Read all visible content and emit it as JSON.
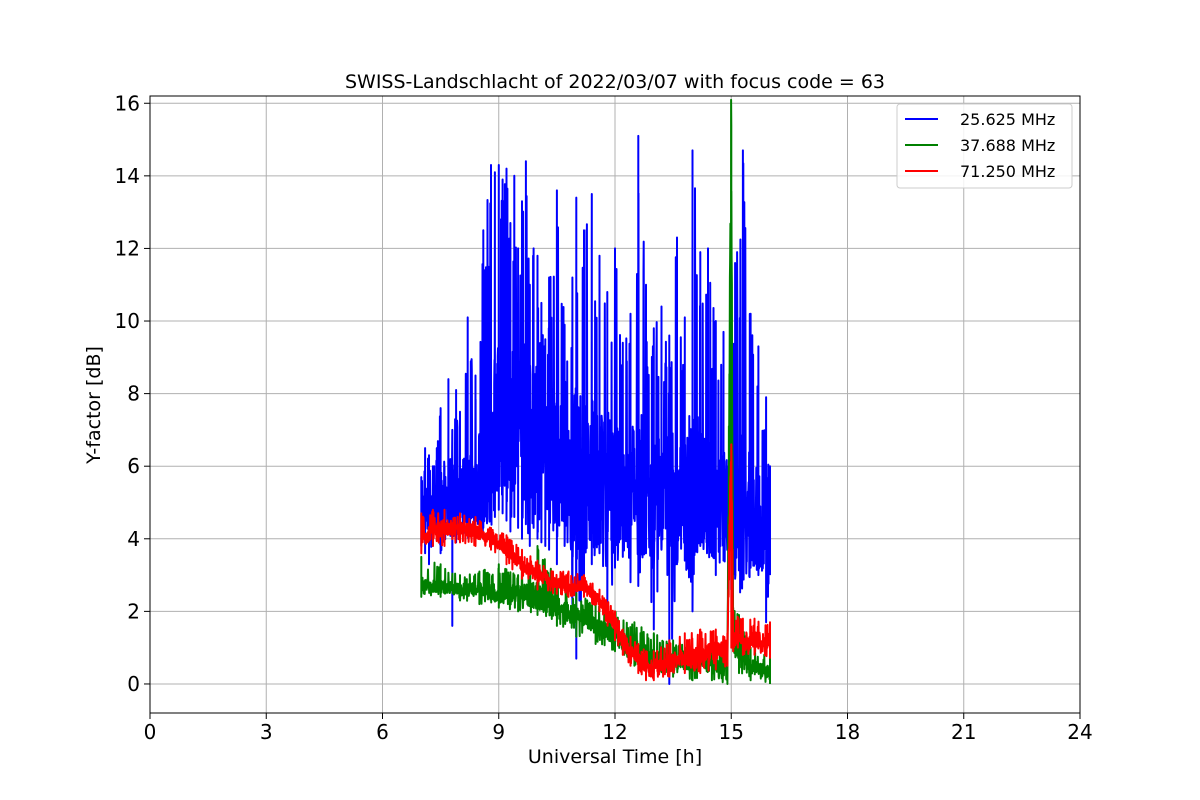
{
  "chart_data": {
    "type": "line",
    "title": "SWISS-Landschlacht of 2022/03/07 with focus code = 63",
    "xlabel": "Universal Time [h]",
    "ylabel": "Y-factor [dB]",
    "xlim": [
      0,
      24
    ],
    "ylim": [
      -0.8,
      16.2
    ],
    "xticks": [
      0,
      3,
      6,
      9,
      12,
      15,
      18,
      21,
      24
    ],
    "yticks": [
      0,
      2,
      4,
      6,
      8,
      10,
      12,
      14,
      16
    ],
    "grid": true,
    "legend_position": "top-right",
    "series": [
      {
        "name": "25.625 MHz",
        "color": "#0000ff",
        "x": [
          7.0,
          7.1,
          7.2,
          7.3,
          7.4,
          7.5,
          7.6,
          7.7,
          7.8,
          7.9,
          8.0,
          8.2,
          8.4,
          8.6,
          8.8,
          8.9,
          9.0,
          9.1,
          9.2,
          9.3,
          9.4,
          9.5,
          9.6,
          9.7,
          9.8,
          9.9,
          10.0,
          10.1,
          10.2,
          10.3,
          10.5,
          10.7,
          10.9,
          11.0,
          11.2,
          11.4,
          11.6,
          11.8,
          12.0,
          12.2,
          12.4,
          12.6,
          12.8,
          13.0,
          13.2,
          13.4,
          13.6,
          13.8,
          14.0,
          14.2,
          14.4,
          14.6,
          14.8,
          15.0,
          15.1,
          15.3,
          15.5,
          15.7,
          15.9,
          16.0
        ],
        "mean": [
          4.5,
          4.8,
          5.0,
          4.9,
          4.8,
          5.0,
          5.1,
          5.2,
          5.1,
          5.0,
          5.2,
          5.3,
          5.5,
          5.8,
          6.3,
          7.0,
          7.5,
          7.2,
          7.0,
          7.4,
          7.6,
          7.2,
          7.0,
          7.3,
          7.5,
          7.0,
          7.2,
          7.0,
          6.8,
          6.5,
          6.0,
          5.8,
          5.5,
          5.6,
          5.8,
          5.7,
          5.5,
          5.6,
          5.4,
          5.3,
          5.2,
          5.5,
          5.3,
          5.0,
          5.2,
          4.9,
          5.1,
          5.3,
          5.0,
          5.4,
          5.2,
          5.0,
          5.1,
          4.8,
          4.6,
          4.7,
          4.6,
          4.5,
          4.5,
          4.4
        ],
        "upper": [
          5.7,
          6.5,
          6.3,
          6.0,
          6.5,
          7.6,
          6.0,
          8.4,
          7.0,
          8.1,
          7.5,
          10.1,
          8.5,
          12.5,
          14.3,
          14.1,
          14.3,
          13.9,
          14.2,
          12.7,
          14.0,
          12.0,
          13.3,
          14.4,
          11.0,
          12.0,
          11.8,
          10.5,
          9.5,
          11.2,
          13.6,
          9.9,
          11.2,
          13.4,
          12.5,
          13.5,
          11.8,
          10.8,
          12.0,
          9.4,
          10.2,
          15.1,
          11.0,
          9.8,
          10.4,
          9.6,
          12.3,
          10.1,
          14.7,
          11.9,
          12.0,
          10.0,
          9.7,
          7.7,
          11.6,
          14.7,
          10.2,
          9.3,
          7.9,
          6.0
        ],
        "lower": [
          3.8,
          3.6,
          3.3,
          3.8,
          4.0,
          3.6,
          3.9,
          4.2,
          1.6,
          3.9,
          4.0,
          4.2,
          4.0,
          4.3,
          4.5,
          4.6,
          4.8,
          4.7,
          4.5,
          4.2,
          4.6,
          4.3,
          4.0,
          4.4,
          3.8,
          4.3,
          4.0,
          3.9,
          3.8,
          3.7,
          3.3,
          3.8,
          2.2,
          0.7,
          3.0,
          3.3,
          3.6,
          1.8,
          3.2,
          3.5,
          2.8,
          2.7,
          3.6,
          1.5,
          3.7,
          0.0,
          3.3,
          3.4,
          2.0,
          3.8,
          4.0,
          3.0,
          3.4,
          2.6,
          2.9,
          3.0,
          3.2,
          3.0,
          1.7,
          3.0
        ]
      },
      {
        "name": "37.688 MHz",
        "color": "#008000",
        "x": [
          7.0,
          7.5,
          8.0,
          8.5,
          9.0,
          9.5,
          10.0,
          10.5,
          11.0,
          11.5,
          12.0,
          12.5,
          13.0,
          13.5,
          14.0,
          14.5,
          14.9,
          15.0,
          15.05,
          15.2,
          15.5,
          16.0
        ],
        "mean": [
          2.7,
          2.7,
          2.6,
          2.6,
          2.5,
          2.5,
          2.4,
          2.1,
          1.9,
          1.6,
          1.3,
          1.0,
          0.7,
          0.6,
          0.6,
          0.5,
          0.4,
          15.3,
          1.4,
          1.0,
          0.5,
          0.3
        ],
        "upper": [
          3.5,
          3.3,
          3.0,
          3.1,
          3.3,
          3.0,
          3.8,
          2.9,
          2.5,
          2.2,
          2.0,
          1.7,
          1.4,
          1.2,
          1.0,
          1.0,
          0.9,
          15.4,
          2.1,
          1.9,
          1.0,
          0.8
        ],
        "lower": [
          2.4,
          2.4,
          2.3,
          2.2,
          2.1,
          2.0,
          1.9,
          1.6,
          1.3,
          1.1,
          0.9,
          0.5,
          0.3,
          0.2,
          0.1,
          0.1,
          0.0,
          4.0,
          0.9,
          0.3,
          0.1,
          0.0
        ]
      },
      {
        "name": "71.250 MHz",
        "color": "#ff0000",
        "x": [
          7.0,
          7.3,
          7.6,
          8.0,
          8.4,
          8.8,
          9.2,
          9.6,
          10.0,
          10.4,
          10.8,
          11.2,
          11.6,
          12.0,
          12.2,
          12.4,
          12.6,
          12.8,
          13.0,
          13.4,
          13.8,
          14.2,
          14.6,
          14.9,
          15.0,
          15.05,
          15.3,
          15.6,
          16.0
        ],
        "mean": [
          4.0,
          4.2,
          4.3,
          4.3,
          4.2,
          4.0,
          3.7,
          3.3,
          3.0,
          2.8,
          2.7,
          2.7,
          2.3,
          1.6,
          1.1,
          0.9,
          0.7,
          0.5,
          0.5,
          0.6,
          0.7,
          0.8,
          0.9,
          1.0,
          6.5,
          1.3,
          1.2,
          1.2,
          1.2
        ],
        "upper": [
          4.7,
          4.8,
          4.8,
          4.7,
          4.6,
          4.3,
          4.1,
          3.7,
          3.4,
          3.1,
          3.1,
          3.0,
          2.6,
          2.0,
          1.5,
          1.3,
          1.1,
          0.9,
          0.9,
          1.2,
          1.4,
          1.5,
          1.5,
          1.4,
          6.6,
          2.0,
          1.8,
          1.8,
          1.7
        ],
        "lower": [
          3.6,
          3.8,
          3.8,
          3.9,
          3.8,
          3.7,
          3.3,
          2.9,
          2.6,
          2.5,
          2.4,
          2.4,
          2.0,
          1.2,
          0.8,
          0.5,
          0.3,
          0.1,
          0.1,
          0.2,
          0.3,
          0.3,
          0.4,
          0.5,
          1.0,
          0.9,
          0.8,
          0.8,
          0.7
        ]
      }
    ]
  }
}
